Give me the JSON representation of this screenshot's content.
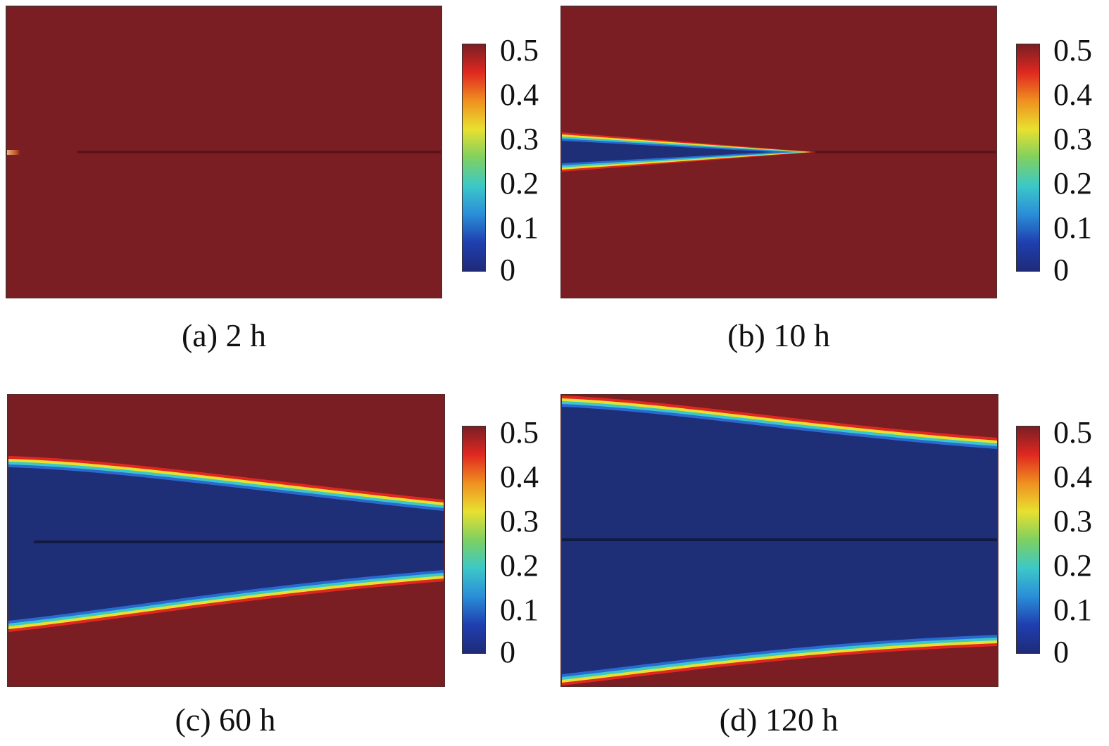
{
  "colormap": {
    "stops": [
      "#1f2a78",
      "#1f3fb0",
      "#2a8ed8",
      "#3cc8c8",
      "#7fd060",
      "#e8e030",
      "#f09020",
      "#e02820",
      "#7a1e24"
    ],
    "background": "#7a1e24",
    "low": "#1e2f78"
  },
  "chart_data": [
    {
      "type": "heatmap",
      "caption": "(a) 2 h",
      "colorbar": {
        "range": [
          0,
          0.5
        ],
        "ticks": [
          "0.5",
          "0.4",
          "0.3",
          "0.2",
          "0.1",
          "0"
        ]
      },
      "field": {
        "crack_length_fraction": 0.16,
        "opened_zone": "none"
      }
    },
    {
      "type": "heatmap",
      "caption": "(b) 10 h",
      "colorbar": {
        "range": [
          0,
          0.5
        ],
        "ticks": [
          "0.5",
          "0.4",
          "0.3",
          "0.2",
          "0.1",
          "0"
        ]
      },
      "field": {
        "opened_zone": "wedge",
        "wedge_tip_fraction": 0.58
      }
    },
    {
      "type": "heatmap",
      "caption": "(c) 60 h",
      "colorbar": {
        "range": [
          0,
          0.5
        ],
        "ticks": [
          "0.5",
          "0.4",
          "0.3",
          "0.2",
          "0.1",
          "0"
        ]
      },
      "field": {
        "opened_zone": "band"
      }
    },
    {
      "type": "heatmap",
      "caption": "(d) 120 h",
      "colorbar": {
        "range": [
          0,
          0.5
        ],
        "ticks": [
          "0.5",
          "0.4",
          "0.3",
          "0.2",
          "0.1",
          "0"
        ]
      },
      "field": {
        "opened_zone": "band"
      }
    }
  ]
}
